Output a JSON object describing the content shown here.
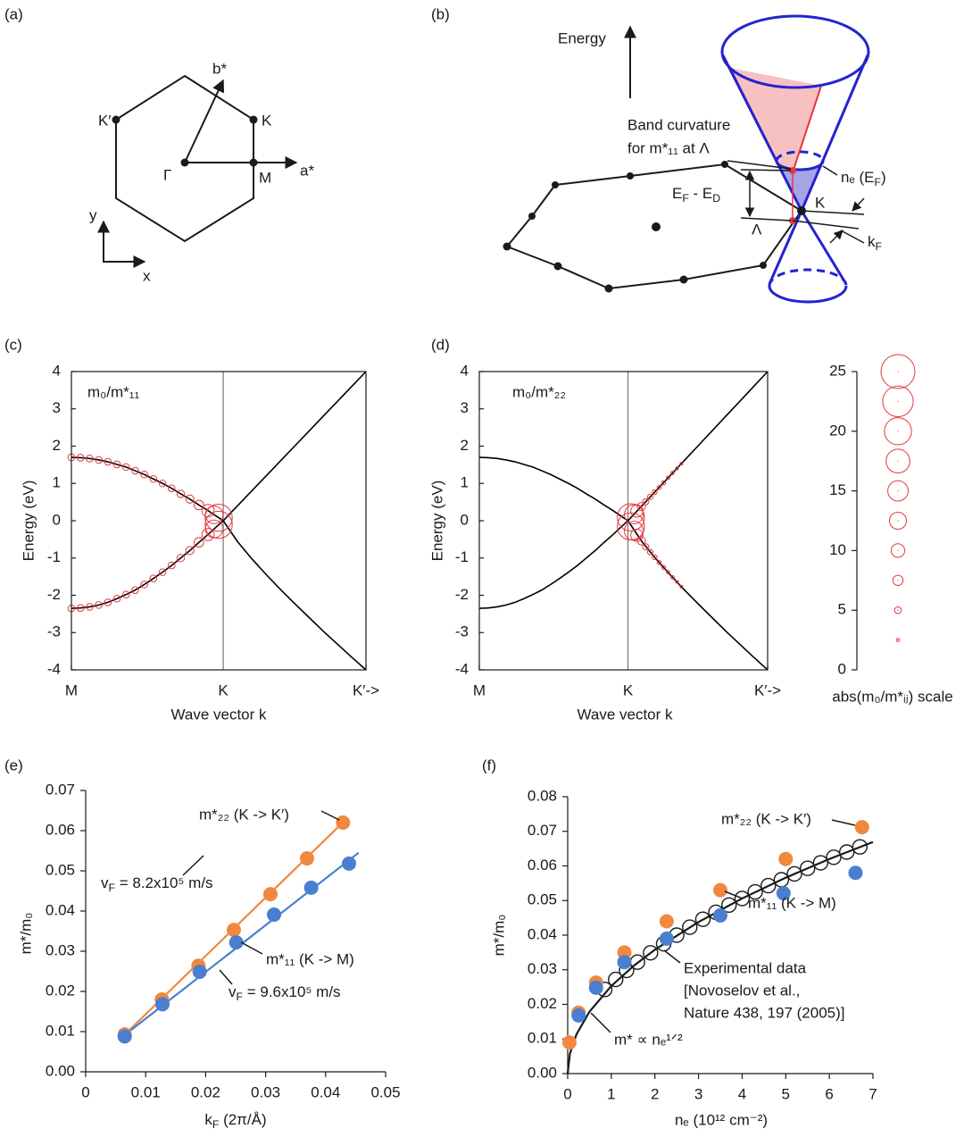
{
  "panel_a": {
    "label": "(a)",
    "b_star": "b*",
    "k_prime": "K′",
    "k": "K",
    "gamma": "Γ",
    "m": "M",
    "a_star": "a*",
    "y": "y",
    "x": "x"
  },
  "panel_b": {
    "label": "(b)",
    "energy": "Energy",
    "curv1": "Band curvature",
    "curv2": "for m*₁₁ at Λ",
    "ne": [
      "nₑ (E",
      "F",
      ")"
    ],
    "ef_ed": [
      "E",
      "F",
      " - E",
      "D"
    ],
    "k": "K",
    "lambda": "Λ",
    "kf": [
      "k",
      "F"
    ]
  },
  "chart_data": [
    {
      "type": "band",
      "label": "(c)",
      "inset": "m₀/m*₁₁",
      "xlabel": "Wave vector k",
      "ylabel": "Energy (eV)",
      "xlim": [
        0,
        1.94
      ],
      "xticks": [
        {
          "value": 0,
          "label": "M"
        },
        {
          "value": 1,
          "label": "K"
        },
        {
          "value": 1.94,
          "label": "K′->"
        }
      ],
      "ylim": [
        -4,
        4
      ],
      "yticks": [
        -4,
        -3,
        -2,
        -1,
        0,
        1,
        2,
        3,
        4
      ],
      "series": [
        {
          "color": "#000000",
          "x": [
            0,
            0.06,
            0.12,
            0.18,
            0.24,
            0.3,
            0.36,
            0.42,
            0.48,
            0.54,
            0.6,
            0.66,
            0.72,
            0.78,
            0.84,
            0.9,
            0.94,
            0.97,
            1.0,
            1.094,
            1.188,
            1.282,
            1.376,
            1.47,
            1.564,
            1.658,
            1.752,
            1.846,
            1.94
          ],
          "values": [
            1.7,
            1.69,
            1.67,
            1.63,
            1.58,
            1.51,
            1.44,
            1.34,
            1.24,
            1.12,
            1.0,
            0.87,
            0.72,
            0.58,
            0.42,
            0.27,
            0.16,
            0.08,
            0,
            -0.56,
            -1.02,
            -1.44,
            -1.84,
            -2.22,
            -2.59,
            -2.96,
            -3.31,
            -3.66,
            -4
          ]
        },
        {
          "color": "#000000",
          "x": [
            0,
            0.06,
            0.12,
            0.18,
            0.24,
            0.3,
            0.36,
            0.42,
            0.48,
            0.54,
            0.6,
            0.66,
            0.72,
            0.78,
            0.84,
            0.9,
            0.94,
            0.97,
            1.0,
            1.094,
            1.188,
            1.282,
            1.376,
            1.47,
            1.564,
            1.658,
            1.752,
            1.846,
            1.94
          ],
          "values": [
            -2.35,
            -2.34,
            -2.31,
            -2.26,
            -2.19,
            -2.09,
            -1.98,
            -1.86,
            -1.71,
            -1.55,
            -1.38,
            -1.2,
            -1.0,
            -0.8,
            -0.58,
            -0.37,
            -0.22,
            -0.11,
            0,
            0.4,
            0.8,
            1.2,
            1.6,
            2.0,
            2.4,
            2.8,
            3.2,
            3.6,
            4.0
          ]
        }
      ],
      "bubbles": [
        {
          "color": "#e2383c",
          "x": [
            0,
            0.06,
            0.12,
            0.18,
            0.24,
            0.3,
            0.36,
            0.42,
            0.48,
            0.54,
            0.6,
            0.66,
            0.72,
            0.78,
            0.84,
            0.9,
            0.94,
            0.97
          ],
          "values": [
            1.7,
            1.69,
            1.67,
            1.63,
            1.58,
            1.51,
            1.44,
            1.34,
            1.24,
            1.12,
            1.0,
            0.87,
            0.72,
            0.58,
            0.42,
            0.27,
            0.16,
            0.08
          ],
          "sizes": [
            5,
            5,
            5,
            5,
            5,
            5,
            5,
            5,
            5,
            5,
            5,
            5,
            5.5,
            6,
            7,
            9,
            13,
            20
          ]
        },
        {
          "color": "#e2383c",
          "x": [
            0,
            0.06,
            0.12,
            0.18,
            0.24,
            0.3,
            0.36,
            0.42,
            0.48,
            0.54,
            0.6,
            0.66,
            0.72,
            0.78,
            0.84,
            0.9,
            0.94,
            0.97
          ],
          "values": [
            -2.35,
            -2.34,
            -2.31,
            -2.26,
            -2.19,
            -2.09,
            -1.98,
            -1.86,
            -1.71,
            -1.55,
            -1.38,
            -1.2,
            -1.0,
            -0.8,
            -0.58,
            -0.37,
            -0.22,
            -0.11
          ],
          "sizes": [
            5,
            5,
            5,
            5,
            5,
            5,
            5,
            5,
            5,
            5,
            5,
            5,
            5.5,
            6,
            7,
            9,
            13,
            20
          ]
        }
      ]
    },
    {
      "type": "band",
      "label": "(d)",
      "inset": "m₀/m*₂₂",
      "xlabel": "Wave vector k",
      "ylabel": "Energy (eV)",
      "xlim": [
        0,
        1.94
      ],
      "xticks": [
        {
          "value": 0,
          "label": "M"
        },
        {
          "value": 1,
          "label": "K"
        },
        {
          "value": 1.94,
          "label": "K′->"
        }
      ],
      "ylim": [
        -4,
        4
      ],
      "yticks": [
        -4,
        -3,
        -2,
        -1,
        0,
        1,
        2,
        3,
        4
      ],
      "series": [
        {
          "color": "#000000",
          "x": [
            0,
            0.06,
            0.12,
            0.18,
            0.24,
            0.3,
            0.36,
            0.42,
            0.48,
            0.54,
            0.6,
            0.66,
            0.72,
            0.78,
            0.84,
            0.9,
            0.94,
            0.97,
            1.0,
            1.094,
            1.188,
            1.282,
            1.376,
            1.47,
            1.564,
            1.658,
            1.752,
            1.846,
            1.94
          ],
          "values": [
            1.7,
            1.69,
            1.67,
            1.63,
            1.58,
            1.51,
            1.44,
            1.34,
            1.24,
            1.12,
            1.0,
            0.87,
            0.72,
            0.58,
            0.42,
            0.27,
            0.16,
            0.08,
            0,
            -0.56,
            -1.02,
            -1.44,
            -1.84,
            -2.22,
            -2.59,
            -2.96,
            -3.31,
            -3.66,
            -4
          ]
        },
        {
          "color": "#000000",
          "x": [
            0,
            0.06,
            0.12,
            0.18,
            0.24,
            0.3,
            0.36,
            0.42,
            0.48,
            0.54,
            0.6,
            0.66,
            0.72,
            0.78,
            0.84,
            0.9,
            0.94,
            0.97,
            1.0,
            1.094,
            1.188,
            1.282,
            1.376,
            1.47,
            1.564,
            1.658,
            1.752,
            1.846,
            1.94
          ],
          "values": [
            -2.35,
            -2.34,
            -2.31,
            -2.26,
            -2.19,
            -2.09,
            -1.98,
            -1.86,
            -1.71,
            -1.55,
            -1.38,
            -1.2,
            -1.0,
            -0.8,
            -0.58,
            -0.37,
            -0.22,
            -0.11,
            0,
            0.4,
            0.8,
            1.2,
            1.6,
            2.0,
            2.4,
            2.8,
            3.2,
            3.6,
            4.0
          ]
        }
      ],
      "bubbles": [
        {
          "color": "#e2383c",
          "x": [
            1.02,
            1.04,
            1.06,
            1.09,
            1.12,
            1.15,
            1.18,
            1.21,
            1.24,
            1.27,
            1.3,
            1.33,
            1.36
          ],
          "values": [
            0.09,
            0.17,
            0.26,
            0.38,
            0.51,
            0.64,
            0.77,
            0.89,
            1.02,
            1.15,
            1.28,
            1.4,
            1.53
          ],
          "sizes": [
            20,
            14,
            9,
            6,
            4.5,
            4,
            3.5,
            3,
            3,
            2.5,
            2.5,
            2,
            2
          ]
        },
        {
          "color": "#e2383c",
          "x": [
            1.02,
            1.04,
            1.06,
            1.09,
            1.12,
            1.15,
            1.18,
            1.21,
            1.24,
            1.27,
            1.3,
            1.33,
            1.36
          ],
          "values": [
            -0.15,
            -0.27,
            -0.39,
            -0.54,
            -0.7,
            -0.84,
            -0.98,
            -1.12,
            -1.25,
            -1.38,
            -1.52,
            -1.64,
            -1.77
          ],
          "sizes": [
            20,
            14,
            9,
            6,
            4.5,
            4,
            3.5,
            3,
            3,
            2.5,
            2.5,
            2,
            2
          ]
        }
      ]
    },
    {
      "type": "bubble_scale",
      "xlabel": "abs(m₀/m*ᵢⱼ) scale",
      "color": "#e2383c",
      "ylim": [
        0,
        25
      ],
      "yticks": [
        0,
        5,
        10,
        15,
        20,
        25
      ],
      "values": [
        2.5,
        5,
        7.5,
        10,
        12.5,
        15,
        17.5,
        20,
        22.5,
        25
      ]
    },
    {
      "type": "scatter",
      "label": "(e)",
      "xlabel": [
        "k",
        "F",
        " (2π/Å)"
      ],
      "ylabel": "m*/m₀",
      "xlim": [
        0,
        0.05
      ],
      "xticks": [
        0,
        0.01,
        0.02,
        0.03,
        0.04,
        0.05
      ],
      "ylim": [
        0,
        0.07
      ],
      "yticks": [
        {
          "value": 0,
          "label": "0.00"
        },
        {
          "value": 0.01,
          "label": "0.01"
        },
        {
          "value": 0.02,
          "label": "0.02"
        },
        {
          "value": 0.03,
          "label": "0.03"
        },
        {
          "value": 0.04,
          "label": "0.04"
        },
        {
          "value": 0.05,
          "label": "0.05"
        },
        {
          "value": 0.06,
          "label": "0.06"
        },
        {
          "value": 0.07,
          "label": "0.07"
        }
      ],
      "fits": [
        {
          "color": "#f0883e",
          "x": [
            0.0062,
            0.0432
          ],
          "values": [
            0.0088,
            0.0625
          ]
        },
        {
          "color": "#4a7fcf",
          "x": [
            0.0062,
            0.0455
          ],
          "values": [
            0.0088,
            0.0545
          ]
        }
      ],
      "series": [
        {
          "name": "m*₂₂ (K -> K′)",
          "color": "#f0883e",
          "x": [
            0.0065,
            0.0127,
            0.0188,
            0.0247,
            0.0308,
            0.0369,
            0.0429
          ],
          "values": [
            0.0093,
            0.018,
            0.0264,
            0.0353,
            0.0442,
            0.0531,
            0.062
          ]
        },
        {
          "name": "m*₁₁ (K -> M)",
          "color": "#4a7fcf",
          "x": [
            0.0065,
            0.0128,
            0.019,
            0.0251,
            0.0314,
            0.0376,
            0.0439
          ],
          "values": [
            0.0088,
            0.0168,
            0.0249,
            0.0322,
            0.0391,
            0.0458,
            0.0518
          ]
        }
      ],
      "annotations": [
        [
          "v",
          "F",
          " = 8.2x10⁵ m/s"
        ],
        [
          "v",
          "F",
          " = 9.6x10⁵ m/s"
        ]
      ]
    },
    {
      "type": "scatter",
      "label": "(f)",
      "xlabel": "nₑ (10¹² cm⁻²)",
      "ylabel": "m*/m₀",
      "xlim": [
        0,
        7
      ],
      "xticks": [
        0,
        1,
        2,
        3,
        4,
        5,
        6,
        7
      ],
      "ylim": [
        0,
        0.08
      ],
      "yticks": [
        {
          "value": 0,
          "label": "0.00"
        },
        {
          "value": 0.01,
          "label": "0.01"
        },
        {
          "value": 0.02,
          "label": "0.02"
        },
        {
          "value": 0.03,
          "label": "0.03"
        },
        {
          "value": 0.04,
          "label": "0.04"
        },
        {
          "value": 0.05,
          "label": "0.05"
        },
        {
          "value": 0.06,
          "label": "0.06"
        },
        {
          "value": 0.07,
          "label": "0.07"
        },
        {
          "value": 0.08,
          "label": "0.08"
        }
      ],
      "fits": [
        {
          "name": "m* ∝ nₑ¹ᐟ²",
          "color": "#1a1a1a",
          "x": [
            0,
            0.05,
            0.2,
            0.5,
            1,
            1.5,
            2,
            3,
            4,
            5,
            6,
            7
          ],
          "values": [
            0,
            0.0057,
            0.0113,
            0.0179,
            0.0253,
            0.031,
            0.0358,
            0.0438,
            0.0506,
            0.0566,
            0.062,
            0.0669
          ]
        }
      ],
      "series": [
        {
          "name": "Experimental data",
          "source": [
            "[Novoselov et al.,",
            "Nature 438, 197 (2005)]"
          ],
          "marker": "open",
          "color": "#1a1a1a",
          "x": [
            0.85,
            1.1,
            1.35,
            1.6,
            1.9,
            2.2,
            2.5,
            2.8,
            3.1,
            3.4,
            3.7,
            4.0,
            4.3,
            4.6,
            4.9,
            5.2,
            5.5,
            5.8,
            6.1,
            6.4,
            6.7
          ],
          "values": [
            0.0243,
            0.0272,
            0.0298,
            0.0322,
            0.0349,
            0.0375,
            0.04,
            0.0423,
            0.0446,
            0.0466,
            0.0487,
            0.0506,
            0.0525,
            0.0543,
            0.056,
            0.0577,
            0.0593,
            0.0609,
            0.0625,
            0.064,
            0.0655
          ]
        },
        {
          "name": "m*₂₂ (K -> K′)",
          "color": "#f0883e",
          "x": [
            0.04,
            0.25,
            0.65,
            1.3,
            2.27,
            3.5,
            5.0,
            6.75
          ],
          "values": [
            0.009,
            0.0176,
            0.0263,
            0.035,
            0.044,
            0.053,
            0.062,
            0.0712
          ]
        },
        {
          "name": "m*₁₁ (K -> M)",
          "color": "#4a7fcf",
          "x": [
            0.25,
            0.65,
            1.3,
            2.27,
            3.5,
            4.95,
            6.6
          ],
          "values": [
            0.0168,
            0.0248,
            0.0322,
            0.039,
            0.0457,
            0.0521,
            0.058
          ]
        }
      ]
    }
  ]
}
